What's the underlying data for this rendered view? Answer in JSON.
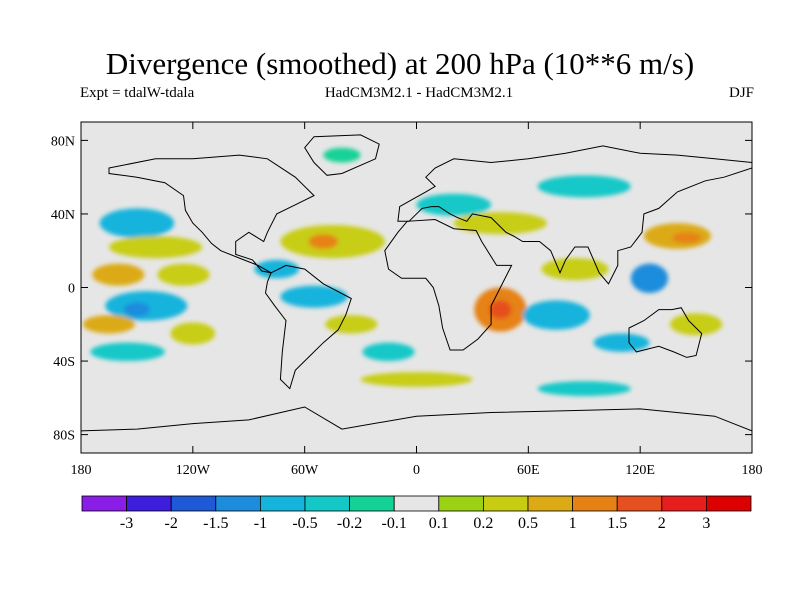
{
  "title": "Divergence (smoothed) at 200 hPa (10**6 m/s)",
  "subtitle_left": "Expt = tdalW-tdala",
  "subtitle_center": "HadCM3M2.1 - HadCM3M2.1",
  "subtitle_right": "DJF",
  "map": {
    "ocean_color": "#e6e6e6",
    "lat_ticks": [
      "80N",
      "40N",
      "0",
      "40S",
      "80S"
    ],
    "lat_values": [
      80,
      40,
      0,
      -40,
      -80
    ],
    "lon_ticks": [
      "180",
      "120W",
      "60W",
      "0",
      "60E",
      "120E",
      "180"
    ],
    "lon_values": [
      -180,
      -120,
      -60,
      0,
      60,
      120,
      180
    ],
    "lon_range": [
      -180,
      180
    ],
    "lat_range": [
      -90,
      90
    ]
  },
  "colorbar": {
    "labels": [
      "-3",
      "-2",
      "-1.5",
      "-1",
      "-0.5",
      "-0.2",
      "-0.1",
      "0.1",
      "0.2",
      "0.5",
      "1",
      "1.5",
      "2",
      "3"
    ],
    "colors": [
      "#8a1ee6",
      "#3c1edc",
      "#1e5ad7",
      "#1e8cdc",
      "#14b4dc",
      "#14c8c8",
      "#14d296",
      "#e6e6e6",
      "#9bd214",
      "#c8cd14",
      "#dcaa14",
      "#e68214",
      "#e6501e",
      "#e61e1e",
      "#dc0000"
    ]
  },
  "regions": [
    {
      "name": "n-pacific-low",
      "lon": -150,
      "lat": 35,
      "rx": 20,
      "ry": 8,
      "color": "#14b4dc"
    },
    {
      "name": "n-pacific-pos",
      "lon": -140,
      "lat": 22,
      "rx": 25,
      "ry": 6,
      "color": "#c8cd14"
    },
    {
      "name": "trop-pac-pos-w",
      "lon": -160,
      "lat": 7,
      "rx": 14,
      "ry": 6,
      "color": "#dcaa14"
    },
    {
      "name": "trop-pac-pos-e",
      "lon": -125,
      "lat": 7,
      "rx": 14,
      "ry": 6,
      "color": "#c8cd14"
    },
    {
      "name": "eq-pac-neg",
      "lon": -145,
      "lat": -10,
      "rx": 22,
      "ry": 8,
      "color": "#14b4dc"
    },
    {
      "name": "eq-pac-core",
      "lon": -150,
      "lat": -12,
      "rx": 7,
      "ry": 4,
      "color": "#1e8cdc"
    },
    {
      "name": "s-pac-pos",
      "lon": -165,
      "lat": -20,
      "rx": 14,
      "ry": 5,
      "color": "#dcaa14"
    },
    {
      "name": "s-pac-pos2",
      "lon": -120,
      "lat": -25,
      "rx": 12,
      "ry": 6,
      "color": "#c8cd14"
    },
    {
      "name": "s-pac-neg",
      "lon": -155,
      "lat": -35,
      "rx": 20,
      "ry": 5,
      "color": "#14c8c8"
    },
    {
      "name": "na-pos",
      "lon": -45,
      "lat": 25,
      "rx": 28,
      "ry": 9,
      "color": "#c8cd14"
    },
    {
      "name": "na-pos-core",
      "lon": -50,
      "lat": 25,
      "rx": 8,
      "ry": 4,
      "color": "#e68214"
    },
    {
      "name": "carib-neg",
      "lon": -75,
      "lat": 10,
      "rx": 12,
      "ry": 5,
      "color": "#14b4dc"
    },
    {
      "name": "sa-neg",
      "lon": -55,
      "lat": -5,
      "rx": 18,
      "ry": 6,
      "color": "#14b4dc"
    },
    {
      "name": "sa-pos",
      "lon": -35,
      "lat": -20,
      "rx": 14,
      "ry": 5,
      "color": "#c8cd14"
    },
    {
      "name": "s-atl-neg",
      "lon": -15,
      "lat": -35,
      "rx": 14,
      "ry": 5,
      "color": "#14c8c8"
    },
    {
      "name": "eur-neg",
      "lon": 20,
      "lat": 45,
      "rx": 20,
      "ry": 6,
      "color": "#14c8c8"
    },
    {
      "name": "med-pos",
      "lon": 45,
      "lat": 35,
      "rx": 25,
      "ry": 6,
      "color": "#c8cd14"
    },
    {
      "name": "af-pos",
      "lon": 45,
      "lat": -12,
      "rx": 14,
      "ry": 12,
      "color": "#e68214"
    },
    {
      "name": "af-core",
      "lon": 45,
      "lat": -12,
      "rx": 6,
      "ry": 5,
      "color": "#e6501e"
    },
    {
      "name": "ind-neg",
      "lon": 75,
      "lat": -15,
      "rx": 18,
      "ry": 8,
      "color": "#14b4dc"
    },
    {
      "name": "ind-pos",
      "lon": 85,
      "lat": 10,
      "rx": 18,
      "ry": 6,
      "color": "#c8cd14"
    },
    {
      "name": "siberia-neg",
      "lon": 90,
      "lat": 55,
      "rx": 25,
      "ry": 6,
      "color": "#14c8c8"
    },
    {
      "name": "wpac-pos",
      "lon": 140,
      "lat": 28,
      "rx": 18,
      "ry": 7,
      "color": "#dcaa14"
    },
    {
      "name": "wpac-core",
      "lon": 145,
      "lat": 27,
      "rx": 8,
      "ry": 3,
      "color": "#e68214"
    },
    {
      "name": "mc-neg",
      "lon": 125,
      "lat": 5,
      "rx": 10,
      "ry": 8,
      "color": "#1e8cdc"
    },
    {
      "name": "sp-pos",
      "lon": 150,
      "lat": -20,
      "rx": 14,
      "ry": 6,
      "color": "#c8cd14"
    },
    {
      "name": "sp-neg",
      "lon": 110,
      "lat": -30,
      "rx": 15,
      "ry": 5,
      "color": "#14b4dc"
    },
    {
      "name": "south-pos",
      "lon": 0,
      "lat": -50,
      "rx": 30,
      "ry": 4,
      "color": "#c8cd14"
    },
    {
      "name": "south-neg",
      "lon": 90,
      "lat": -55,
      "rx": 25,
      "ry": 4,
      "color": "#14c8c8"
    },
    {
      "name": "arctic-neg",
      "lon": -40,
      "lat": 72,
      "rx": 10,
      "ry": 4,
      "color": "#14d296"
    }
  ],
  "continents": [
    {
      "name": "north-america",
      "pts": [
        [
          -165,
          65
        ],
        [
          -140,
          70
        ],
        [
          -120,
          70
        ],
        [
          -95,
          72
        ],
        [
          -80,
          70
        ],
        [
          -65,
          60
        ],
        [
          -55,
          50
        ],
        [
          -65,
          45
        ],
        [
          -75,
          40
        ],
        [
          -80,
          30
        ],
        [
          -82,
          25
        ],
        [
          -90,
          30
        ],
        [
          -97,
          25
        ],
        [
          -97,
          18
        ],
        [
          -88,
          15
        ],
        [
          -83,
          9
        ],
        [
          -78,
          8
        ],
        [
          -85,
          12
        ],
        [
          -95,
          16
        ],
        [
          -105,
          20
        ],
        [
          -110,
          24
        ],
        [
          -115,
          30
        ],
        [
          -120,
          35
        ],
        [
          -124,
          42
        ],
        [
          -125,
          50
        ],
        [
          -135,
          57
        ],
        [
          -150,
          60
        ],
        [
          -165,
          62
        ]
      ]
    },
    {
      "name": "greenland",
      "pts": [
        [
          -55,
          82
        ],
        [
          -30,
          83
        ],
        [
          -20,
          78
        ],
        [
          -22,
          70
        ],
        [
          -40,
          62
        ],
        [
          -48,
          61
        ],
        [
          -55,
          68
        ],
        [
          -60,
          76
        ]
      ]
    },
    {
      "name": "south-america",
      "pts": [
        [
          -78,
          8
        ],
        [
          -70,
          12
        ],
        [
          -60,
          10
        ],
        [
          -50,
          2
        ],
        [
          -35,
          -6
        ],
        [
          -38,
          -15
        ],
        [
          -42,
          -23
        ],
        [
          -50,
          -30
        ],
        [
          -58,
          -38
        ],
        [
          -65,
          -45
        ],
        [
          -68,
          -55
        ],
        [
          -73,
          -50
        ],
        [
          -72,
          -35
        ],
        [
          -70,
          -18
        ],
        [
          -76,
          -10
        ],
        [
          -81,
          -3
        ],
        [
          -80,
          3
        ]
      ]
    },
    {
      "name": "africa",
      "pts": [
        [
          -17,
          20
        ],
        [
          -10,
          30
        ],
        [
          -5,
          36
        ],
        [
          10,
          37
        ],
        [
          20,
          32
        ],
        [
          32,
          31
        ],
        [
          35,
          25
        ],
        [
          43,
          12
        ],
        [
          51,
          12
        ],
        [
          45,
          0
        ],
        [
          40,
          -10
        ],
        [
          40,
          -20
        ],
        [
          33,
          -28
        ],
        [
          25,
          -34
        ],
        [
          18,
          -34
        ],
        [
          14,
          -22
        ],
        [
          12,
          -10
        ],
        [
          9,
          0
        ],
        [
          5,
          5
        ],
        [
          -8,
          5
        ],
        [
          -15,
          10
        ]
      ]
    },
    {
      "name": "eurasia",
      "pts": [
        [
          -10,
          36
        ],
        [
          -9,
          44
        ],
        [
          -2,
          48
        ],
        [
          5,
          52
        ],
        [
          10,
          55
        ],
        [
          5,
          60
        ],
        [
          10,
          65
        ],
        [
          20,
          70
        ],
        [
          40,
          68
        ],
        [
          60,
          70
        ],
        [
          80,
          73
        ],
        [
          100,
          77
        ],
        [
          120,
          73
        ],
        [
          140,
          72
        ],
        [
          160,
          70
        ],
        [
          180,
          68
        ],
        [
          180,
          65
        ],
        [
          165,
          60
        ],
        [
          155,
          58
        ],
        [
          140,
          52
        ],
        [
          130,
          43
        ],
        [
          122,
          40
        ],
        [
          121,
          30
        ],
        [
          115,
          22
        ],
        [
          108,
          20
        ],
        [
          108,
          12
        ],
        [
          103,
          2
        ],
        [
          98,
          8
        ],
        [
          92,
          22
        ],
        [
          85,
          22
        ],
        [
          80,
          15
        ],
        [
          77,
          8
        ],
        [
          72,
          20
        ],
        [
          66,
          25
        ],
        [
          57,
          25
        ],
        [
          52,
          28
        ],
        [
          48,
          30
        ],
        [
          40,
          38
        ],
        [
          30,
          40
        ],
        [
          27,
          36
        ],
        [
          22,
          38
        ],
        [
          18,
          40
        ],
        [
          12,
          44
        ],
        [
          8,
          44
        ],
        [
          3,
          43
        ],
        [
          -4,
          36
        ]
      ]
    },
    {
      "name": "australia",
      "pts": [
        [
          114,
          -22
        ],
        [
          122,
          -18
        ],
        [
          130,
          -12
        ],
        [
          137,
          -12
        ],
        [
          142,
          -11
        ],
        [
          146,
          -18
        ],
        [
          153,
          -25
        ],
        [
          150,
          -37
        ],
        [
          145,
          -38
        ],
        [
          138,
          -35
        ],
        [
          130,
          -32
        ],
        [
          118,
          -35
        ],
        [
          114,
          -30
        ]
      ]
    },
    {
      "name": "antarctica",
      "pts": [
        [
          -180,
          -78
        ],
        [
          -150,
          -77
        ],
        [
          -120,
          -74
        ],
        [
          -90,
          -72
        ],
        [
          -60,
          -65
        ],
        [
          -40,
          -77
        ],
        [
          0,
          -70
        ],
        [
          40,
          -68
        ],
        [
          80,
          -67
        ],
        [
          120,
          -66
        ],
        [
          160,
          -70
        ],
        [
          180,
          -78
        ],
        [
          180,
          -90
        ],
        [
          -180,
          -90
        ]
      ]
    }
  ]
}
